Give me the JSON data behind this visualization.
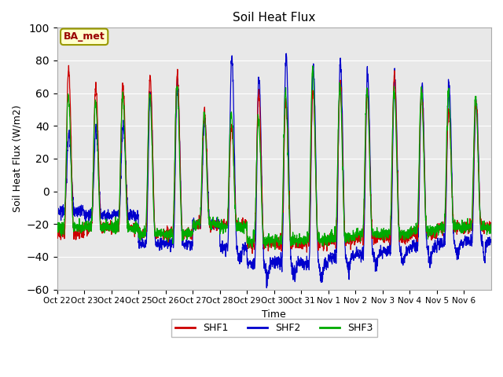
{
  "title": "Soil Heat Flux",
  "ylabel": "Soil Heat Flux (W/m2)",
  "xlabel": "Time",
  "ylim": [
    -60,
    100
  ],
  "background_color": "#e8e8e8",
  "fig_bg_color": "#ffffff",
  "annotation_text": "BA_met",
  "annotation_color": "#990000",
  "annotation_bg": "#ffffcc",
  "annotation_edge": "#999900",
  "colors": {
    "SHF1": "#cc0000",
    "SHF2": "#0000cc",
    "SHF3": "#00aa00"
  },
  "xtick_labels": [
    "Oct 22",
    "Oct 23",
    "Oct 24",
    "Oct 25",
    "Oct 26",
    "Oct 27",
    "Oct 28",
    "Oct 29",
    "Oct 30",
    "Oct 31",
    "Nov 1",
    "Nov 2",
    "Nov 3",
    "Nov 4",
    "Nov 5",
    "Nov 6"
  ],
  "num_days": 16,
  "yticks": [
    -60,
    -40,
    -20,
    0,
    20,
    40,
    60,
    80,
    100
  ],
  "shf1_day_amps": [
    75,
    65,
    65,
    70,
    72,
    50,
    40,
    60,
    55,
    62,
    65,
    62,
    72,
    62,
    50,
    55
  ],
  "shf2_day_amps": [
    35,
    38,
    40,
    60,
    66,
    45,
    82,
    69,
    84,
    77,
    80,
    72,
    70,
    67,
    65,
    55
  ],
  "shf3_day_amps": [
    60,
    55,
    60,
    60,
    65,
    47,
    48,
    45,
    60,
    75,
    65,
    62,
    62,
    62,
    60,
    58
  ],
  "shf1_night_lvl": [
    -26,
    -22,
    -22,
    -26,
    -26,
    -20,
    -20,
    -32,
    -32,
    -32,
    -30,
    -28,
    -28,
    -26,
    -22,
    -22
  ],
  "shf2_night_lvl": [
    -12,
    -15,
    -15,
    -32,
    -32,
    -20,
    -35,
    -44,
    -44,
    -44,
    -40,
    -38,
    -36,
    -34,
    -32,
    -30
  ],
  "shf3_night_lvl": [
    -22,
    -22,
    -22,
    -26,
    -26,
    -20,
    -22,
    -30,
    -30,
    -30,
    -28,
    -26,
    -26,
    -24,
    -22,
    -22
  ],
  "shf1_seed": 10,
  "shf2_seed": 20,
  "shf3_seed": 30,
  "shf2_phase_off": 0.01,
  "shf3_phase_off": -0.01,
  "n_per_day": 144
}
